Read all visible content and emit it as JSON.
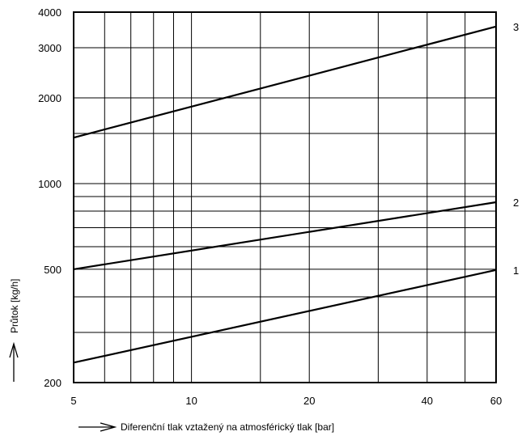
{
  "chart_data": {
    "type": "line",
    "x_scale": "log",
    "y_scale": "log",
    "xlim": [
      5,
      60
    ],
    "ylim": [
      200,
      4000
    ],
    "grid": true,
    "xlabel": "Diferenční tlak vztažený na atmosférický tlak [bar]",
    "ylabel": "Průtok [kg/h]",
    "x_ticks": [
      5,
      10,
      20,
      40,
      60
    ],
    "x_tick_labels": [
      "5",
      "10",
      "20",
      "40",
      "60"
    ],
    "y_ticks": [
      200,
      500,
      1000,
      2000,
      3000,
      4000
    ],
    "y_tick_labels": [
      "200",
      "500",
      "1000",
      "2000",
      "3000",
      "4000"
    ],
    "x_minor": [
      6,
      7,
      8,
      9,
      15,
      30,
      50
    ],
    "y_minor": [
      300,
      400,
      600,
      700,
      800,
      900,
      1500
    ],
    "series": [
      {
        "name": "1",
        "x": [
          5,
          60
        ],
        "y": [
          235,
          497
        ]
      },
      {
        "name": "2",
        "x": [
          5,
          60
        ],
        "y": [
          500,
          860
        ]
      },
      {
        "name": "3",
        "x": [
          5,
          60
        ],
        "y": [
          1450,
          3560
        ]
      }
    ]
  }
}
